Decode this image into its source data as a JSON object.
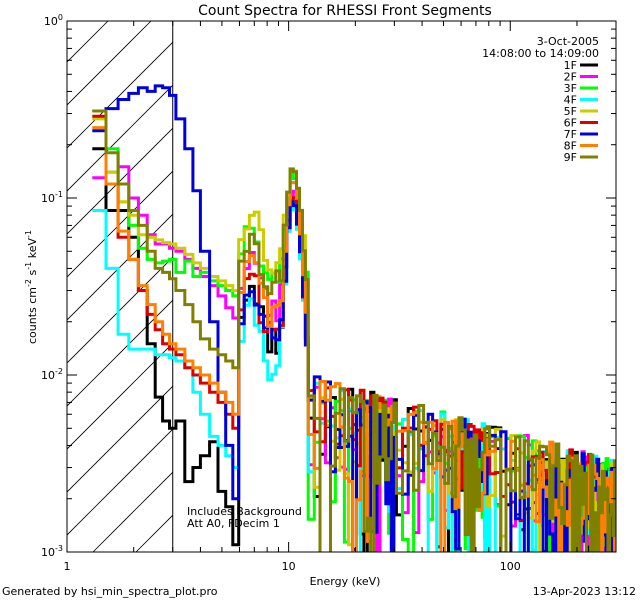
{
  "chart_data": {
    "type": "line",
    "title": "Count Spectra for RHESSI Front Segments",
    "xlabel": "Energy (keV)",
    "ylabel_parts": [
      "counts cm",
      "-2",
      " s",
      "-1",
      " keV",
      "-1"
    ],
    "xscale": "log",
    "yscale": "log",
    "xlim": [
      1,
      300
    ],
    "ylim": [
      0.001,
      1
    ],
    "x_ticks": [
      {
        "value": 1,
        "label": "1"
      },
      {
        "value": 10,
        "label": "10"
      },
      {
        "value": 100,
        "label": "100"
      }
    ],
    "y_ticks": [
      {
        "value": 1,
        "base": "10",
        "exp": "0"
      },
      {
        "value": 0.1,
        "base": "10",
        "exp": "-1"
      },
      {
        "value": 0.01,
        "base": "10",
        "exp": "-2"
      },
      {
        "value": 0.001,
        "base": "10",
        "exp": "-3"
      }
    ],
    "shaded_region": {
      "x_from": 1,
      "x_to": 3,
      "style": "diagonal-hatch"
    },
    "date": "3-Oct-2005",
    "time_range": "14:08:00 to 14:09:00",
    "annotations": [
      "Includes Background",
      "Att A0, FDecim 1"
    ],
    "footer_left": "Generated by hsi_min_spectra_plot.pro",
    "footer_right": "13-Apr-2023 13:12",
    "series": [
      {
        "name": "1F",
        "color": "#000000",
        "base_amp": 0.022,
        "line_scale": 0.9,
        "seed": 11,
        "low": [
          [
            1.3,
            0.19
          ],
          [
            1.5,
            0.085
          ],
          [
            1.7,
            0.085
          ],
          [
            1.9,
            0.06
          ],
          [
            2.1,
            0.03
          ],
          [
            2.3,
            0.015
          ],
          [
            2.5,
            0.0075
          ],
          [
            2.7,
            0.0055
          ],
          [
            2.9,
            0.005
          ],
          [
            3.1,
            0.0055
          ],
          [
            3.4,
            0.0025
          ],
          [
            3.7,
            0.003
          ],
          [
            4.0,
            0.0035
          ],
          [
            4.4,
            0.0042
          ],
          [
            4.8,
            0.0022
          ],
          [
            5.2,
            0.0018
          ],
          [
            5.6,
            0.0011
          ]
        ]
      },
      {
        "name": "2F",
        "color": "#ff00ff",
        "base_amp": 0.032,
        "line_scale": 1.0,
        "seed": 23,
        "low": [
          [
            1.3,
            0.13
          ],
          [
            1.5,
            0.14
          ],
          [
            1.7,
            0.15
          ],
          [
            1.9,
            0.1
          ],
          [
            2.1,
            0.08
          ],
          [
            2.3,
            0.062
          ],
          [
            2.5,
            0.055
          ],
          [
            2.7,
            0.055
          ],
          [
            2.9,
            0.052
          ],
          [
            3.1,
            0.05
          ],
          [
            3.4,
            0.045
          ],
          [
            3.7,
            0.04
          ],
          [
            4.0,
            0.036
          ],
          [
            4.4,
            0.032
          ],
          [
            4.8,
            0.028
          ],
          [
            5.2,
            0.024
          ],
          [
            5.6,
            0.021
          ]
        ]
      },
      {
        "name": "3F",
        "color": "#00ff00",
        "base_amp": 0.05,
        "line_scale": 1.2,
        "seed": 37,
        "low": [
          [
            1.3,
            0.31
          ],
          [
            1.5,
            0.19
          ],
          [
            1.7,
            0.095
          ],
          [
            1.9,
            0.07
          ],
          [
            2.1,
            0.052
          ],
          [
            2.3,
            0.045
          ],
          [
            2.5,
            0.043
          ],
          [
            2.7,
            0.044
          ],
          [
            2.9,
            0.045
          ],
          [
            3.1,
            0.038
          ],
          [
            3.4,
            0.044
          ],
          [
            3.7,
            0.036
          ],
          [
            4.0,
            0.038
          ],
          [
            4.4,
            0.034
          ],
          [
            4.8,
            0.032
          ],
          [
            5.2,
            0.03
          ],
          [
            5.6,
            0.028
          ]
        ]
      },
      {
        "name": "4F",
        "color": "#00ffff",
        "base_amp": 0.016,
        "line_scale": 0.85,
        "seed": 41,
        "low": [
          [
            1.3,
            0.085
          ],
          [
            1.5,
            0.04
          ],
          [
            1.7,
            0.017
          ],
          [
            1.9,
            0.014
          ],
          [
            2.1,
            0.014
          ],
          [
            2.3,
            0.014
          ],
          [
            2.5,
            0.013
          ],
          [
            2.7,
            0.013
          ],
          [
            2.9,
            0.0125
          ],
          [
            3.1,
            0.012
          ],
          [
            3.4,
            0.011
          ],
          [
            3.7,
            0.008
          ],
          [
            4.0,
            0.006
          ],
          [
            4.4,
            0.0045
          ],
          [
            4.8,
            0.004
          ],
          [
            5.2,
            0.0035
          ],
          [
            5.6,
            0.003
          ]
        ]
      },
      {
        "name": "5F",
        "color": "#cccc00",
        "base_amp": 0.06,
        "line_scale": 1.25,
        "seed": 53,
        "low": [
          [
            1.3,
            0.28
          ],
          [
            1.5,
            0.14
          ],
          [
            1.7,
            0.095
          ],
          [
            1.9,
            0.08
          ],
          [
            2.1,
            0.062
          ],
          [
            2.3,
            0.06
          ],
          [
            2.5,
            0.058
          ],
          [
            2.7,
            0.056
          ],
          [
            2.9,
            0.055
          ],
          [
            3.1,
            0.052
          ],
          [
            3.4,
            0.048
          ],
          [
            3.7,
            0.043
          ],
          [
            4.0,
            0.04
          ],
          [
            4.4,
            0.036
          ],
          [
            4.8,
            0.034
          ],
          [
            5.2,
            0.032
          ],
          [
            5.6,
            0.03
          ]
        ]
      },
      {
        "name": "6F",
        "color": "#dd0000",
        "base_amp": 0.024,
        "line_scale": 0.95,
        "seed": 61,
        "low": [
          [
            1.3,
            0.29
          ],
          [
            1.5,
            0.12
          ],
          [
            1.7,
            0.06
          ],
          [
            1.9,
            0.045
          ],
          [
            2.1,
            0.03
          ],
          [
            2.3,
            0.022
          ],
          [
            2.5,
            0.018
          ],
          [
            2.7,
            0.015
          ],
          [
            2.9,
            0.014
          ],
          [
            3.1,
            0.013
          ],
          [
            3.4,
            0.011
          ],
          [
            3.7,
            0.01
          ],
          [
            4.0,
            0.009
          ],
          [
            4.4,
            0.008
          ],
          [
            4.8,
            0.007
          ],
          [
            5.2,
            0.006
          ],
          [
            5.6,
            0.005
          ]
        ]
      },
      {
        "name": "7F",
        "color": "#0000dd",
        "base_amp": 0.02,
        "line_scale": 0.9,
        "seed": 71,
        "low": [
          [
            1.3,
            0.24
          ],
          [
            1.5,
            0.32
          ],
          [
            1.7,
            0.36
          ],
          [
            1.9,
            0.39
          ],
          [
            2.1,
            0.42
          ],
          [
            2.3,
            0.4
          ],
          [
            2.5,
            0.43
          ],
          [
            2.7,
            0.42
          ],
          [
            2.9,
            0.38
          ],
          [
            3.1,
            0.28
          ],
          [
            3.4,
            0.19
          ],
          [
            3.7,
            0.11
          ],
          [
            4.0,
            0.05
          ],
          [
            4.4,
            0.02
          ],
          [
            4.8,
            0.008
          ],
          [
            5.2,
            0.004
          ],
          [
            5.6,
            0.002
          ]
        ]
      },
      {
        "name": "8F",
        "color": "#ff8000",
        "base_amp": 0.03,
        "line_scale": 1.15,
        "seed": 83,
        "low": [
          [
            1.3,
            0.25
          ],
          [
            1.5,
            0.12
          ],
          [
            1.7,
            0.065
          ],
          [
            1.9,
            0.045
          ],
          [
            2.1,
            0.032
          ],
          [
            2.3,
            0.025
          ],
          [
            2.5,
            0.02
          ],
          [
            2.7,
            0.017
          ],
          [
            2.9,
            0.015
          ],
          [
            3.1,
            0.014
          ],
          [
            3.4,
            0.012
          ],
          [
            3.7,
            0.011
          ],
          [
            4.0,
            0.01
          ],
          [
            4.4,
            0.009
          ],
          [
            4.8,
            0.008
          ],
          [
            5.2,
            0.007
          ],
          [
            5.6,
            0.006
          ]
        ]
      },
      {
        "name": "9F",
        "color": "#808000",
        "base_amp": 0.045,
        "line_scale": 1.35,
        "seed": 97,
        "low": [
          [
            1.3,
            0.31
          ],
          [
            1.5,
            0.18
          ],
          [
            1.7,
            0.12
          ],
          [
            1.9,
            0.085
          ],
          [
            2.1,
            0.07
          ],
          [
            2.3,
            0.05
          ],
          [
            2.5,
            0.04
          ],
          [
            2.7,
            0.038
          ],
          [
            2.9,
            0.035
          ],
          [
            3.1,
            0.03
          ],
          [
            3.4,
            0.025
          ],
          [
            3.7,
            0.02
          ],
          [
            4.0,
            0.016
          ],
          [
            4.4,
            0.014
          ],
          [
            4.8,
            0.013
          ],
          [
            5.2,
            0.012
          ],
          [
            5.6,
            0.011
          ]
        ]
      }
    ]
  }
}
